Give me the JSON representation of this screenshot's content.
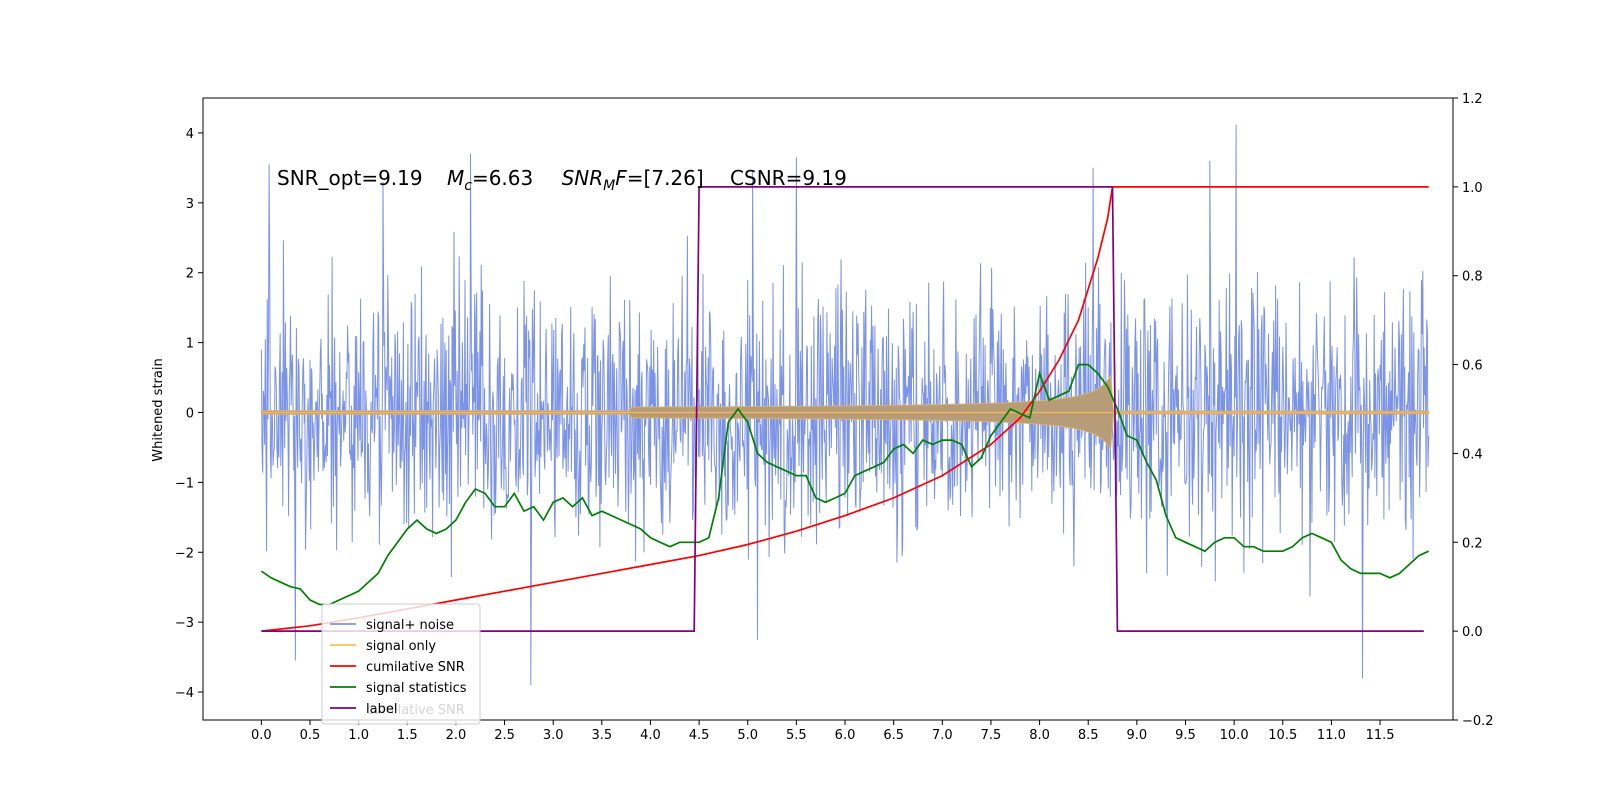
{
  "chart_data": {
    "type": "line",
    "title": "",
    "annotation": {
      "snr_opt": "SNR_opt=9.19",
      "mc_symbol": "M",
      "mc_sub": "c",
      "mc_value": "=6.63",
      "snrmf_symbol": "SNR",
      "snrmf_sub": "M",
      "snrmf_F": "F",
      "snrmf_value": "=[7.26]",
      "csnr": "CSNR=9.19"
    },
    "xlabel": "",
    "ylabel": "Whitened strain",
    "y2label": "",
    "xlim": [
      -0.6,
      12.25
    ],
    "ylim": [
      -4.4,
      4.5
    ],
    "y2lim": [
      -0.2,
      1.2
    ],
    "xticks": [
      0.0,
      0.5,
      1.0,
      1.5,
      2.0,
      2.5,
      3.0,
      3.5,
      4.0,
      4.5,
      5.0,
      5.5,
      6.0,
      6.5,
      7.0,
      7.5,
      8.0,
      8.5,
      9.0,
      9.5,
      10.0,
      10.5,
      11.0,
      11.5
    ],
    "yticks": [
      -4,
      -3,
      -2,
      -1,
      0,
      1,
      2,
      3,
      4
    ],
    "y2ticks": [
      -0.2,
      0.0,
      0.2,
      0.4,
      0.6,
      0.8,
      1.0,
      1.2
    ],
    "grid": false,
    "legend_position": "lower-left",
    "legend": [
      {
        "label": "signal+ noise",
        "color": "#7b93e6"
      },
      {
        "label": "signal only",
        "color": "#ffc04d"
      },
      {
        "label": "cumilative SNR",
        "color": "#ff0000"
      },
      {
        "label": "signal statistics",
        "color": "#008000"
      },
      {
        "label": "label",
        "color": "#800080"
      }
    ],
    "ghost_text": "cumilative SNR",
    "noise": {
      "x_start": 0.0,
      "x_end": 12.0,
      "typical_peak_abs": 2.3,
      "max_peaks": [
        {
          "x": 0.08,
          "y": 3.55
        },
        {
          "x": 1.25,
          "y": 3.3
        },
        {
          "x": 2.15,
          "y": 3.7
        },
        {
          "x": 5.05,
          "y": 3.45
        },
        {
          "x": 5.5,
          "y": 3.65
        },
        {
          "x": 8.55,
          "y": 3.5
        },
        {
          "x": 9.75,
          "y": 3.6
        },
        {
          "x": 10.02,
          "y": 4.12
        }
      ],
      "min_peaks": [
        {
          "x": 0.35,
          "y": -3.55
        },
        {
          "x": 2.77,
          "y": -3.9
        },
        {
          "x": 5.1,
          "y": -3.25
        },
        {
          "x": 11.32,
          "y": -3.8
        }
      ]
    },
    "signal_only": {
      "x_start": 0.0,
      "x_end": 12.0,
      "merger_x": 8.75,
      "peak_amplitude": 0.75
    },
    "series": [
      {
        "name": "cumilative SNR",
        "axis": "right",
        "color": "#ff0000",
        "x": [
          0.0,
          0.5,
          1.0,
          1.5,
          2.0,
          2.5,
          3.0,
          3.5,
          4.0,
          4.5,
          5.0,
          5.5,
          6.0,
          6.5,
          7.0,
          7.5,
          7.8,
          8.0,
          8.2,
          8.4,
          8.5,
          8.6,
          8.7,
          8.75,
          12.0
        ],
        "y": [
          0.0,
          0.012,
          0.03,
          0.05,
          0.07,
          0.09,
          0.11,
          0.13,
          0.15,
          0.17,
          0.195,
          0.225,
          0.26,
          0.3,
          0.35,
          0.42,
          0.48,
          0.54,
          0.61,
          0.7,
          0.77,
          0.84,
          0.93,
          1.0,
          1.0
        ]
      },
      {
        "name": "signal statistics",
        "axis": "right",
        "color": "#008000",
        "x": [
          0.0,
          0.1,
          0.2,
          0.3,
          0.4,
          0.5,
          0.6,
          0.7,
          0.8,
          0.9,
          1.0,
          1.1,
          1.2,
          1.3,
          1.4,
          1.5,
          1.6,
          1.7,
          1.8,
          1.9,
          2.0,
          2.1,
          2.2,
          2.3,
          2.4,
          2.5,
          2.6,
          2.7,
          2.8,
          2.9,
          3.0,
          3.1,
          3.2,
          3.3,
          3.4,
          3.5,
          3.6,
          3.7,
          3.8,
          3.9,
          4.0,
          4.1,
          4.2,
          4.3,
          4.4,
          4.5,
          4.6,
          4.7,
          4.8,
          4.9,
          5.0,
          5.1,
          5.2,
          5.3,
          5.4,
          5.5,
          5.6,
          5.7,
          5.8,
          5.9,
          6.0,
          6.1,
          6.2,
          6.3,
          6.4,
          6.5,
          6.6,
          6.7,
          6.8,
          6.9,
          7.0,
          7.1,
          7.2,
          7.3,
          7.4,
          7.5,
          7.6,
          7.7,
          7.8,
          7.9,
          8.0,
          8.1,
          8.2,
          8.3,
          8.4,
          8.5,
          8.6,
          8.7,
          8.8,
          8.9,
          9.0,
          9.1,
          9.2,
          9.3,
          9.4,
          9.5,
          9.6,
          9.7,
          9.8,
          9.9,
          10.0,
          10.1,
          10.2,
          10.3,
          10.4,
          10.5,
          10.6,
          10.7,
          10.8,
          10.9,
          11.0,
          11.1,
          11.2,
          11.3,
          11.4,
          11.5,
          11.6,
          11.7,
          11.8,
          11.9,
          12.0
        ],
        "y": [
          0.135,
          0.12,
          0.11,
          0.1,
          0.095,
          0.07,
          0.06,
          0.06,
          0.07,
          0.08,
          0.09,
          0.11,
          0.13,
          0.17,
          0.2,
          0.23,
          0.25,
          0.23,
          0.22,
          0.23,
          0.25,
          0.29,
          0.32,
          0.31,
          0.28,
          0.28,
          0.31,
          0.27,
          0.28,
          0.25,
          0.29,
          0.3,
          0.28,
          0.3,
          0.26,
          0.27,
          0.26,
          0.25,
          0.24,
          0.23,
          0.21,
          0.2,
          0.19,
          0.2,
          0.2,
          0.2,
          0.21,
          0.3,
          0.47,
          0.5,
          0.47,
          0.4,
          0.38,
          0.37,
          0.36,
          0.35,
          0.35,
          0.3,
          0.29,
          0.3,
          0.31,
          0.35,
          0.36,
          0.37,
          0.38,
          0.41,
          0.42,
          0.4,
          0.43,
          0.42,
          0.43,
          0.43,
          0.42,
          0.37,
          0.39,
          0.44,
          0.47,
          0.5,
          0.49,
          0.48,
          0.58,
          0.52,
          0.53,
          0.54,
          0.6,
          0.6,
          0.58,
          0.55,
          0.5,
          0.44,
          0.43,
          0.38,
          0.34,
          0.26,
          0.21,
          0.2,
          0.19,
          0.18,
          0.2,
          0.21,
          0.21,
          0.19,
          0.19,
          0.18,
          0.18,
          0.18,
          0.19,
          0.21,
          0.22,
          0.21,
          0.2,
          0.16,
          0.14,
          0.13,
          0.13,
          0.13,
          0.12,
          0.13,
          0.15,
          0.17,
          0.18
        ]
      },
      {
        "name": "label",
        "axis": "right",
        "color": "#800080",
        "x": [
          0.0,
          4.45,
          4.5,
          8.75,
          8.8,
          11.95
        ],
        "y": [
          0.0,
          0.0,
          1.0,
          1.0,
          0.0,
          0.0
        ]
      }
    ]
  }
}
